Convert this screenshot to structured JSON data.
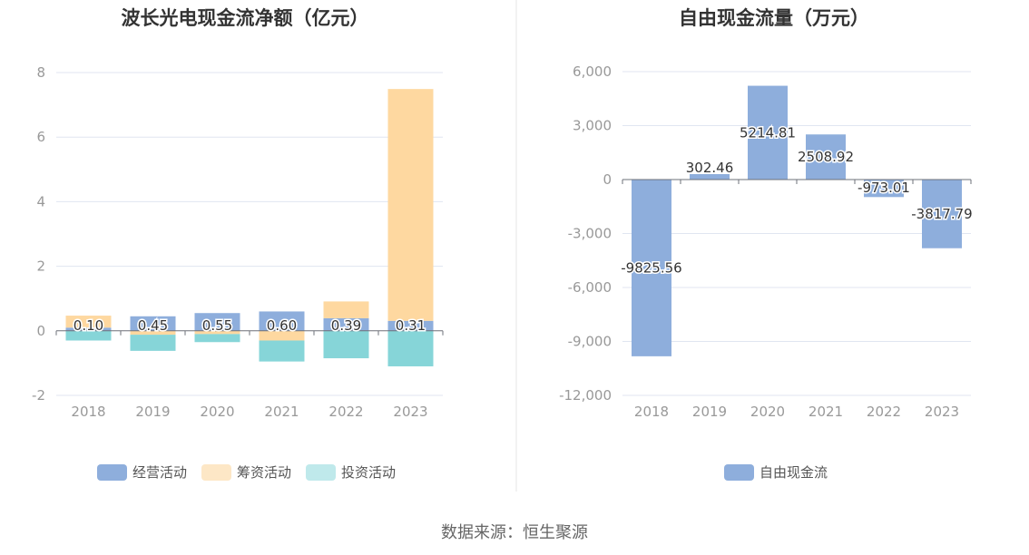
{
  "source": "数据来源：恒生聚源",
  "chart_data": [
    {
      "type": "bar",
      "stacked": true,
      "title": "波长光电现金流净额（亿元）",
      "categories": [
        "2018",
        "2019",
        "2020",
        "2021",
        "2022",
        "2023"
      ],
      "ylim": [
        -2,
        8
      ],
      "yticks": [
        "8",
        "6",
        "4",
        "2",
        "0",
        "-2"
      ],
      "ytick_values": [
        8,
        6,
        4,
        2,
        0,
        -2
      ],
      "series": [
        {
          "name": "经营活动",
          "color": "#8eaedc",
          "values": [
            0.1,
            0.45,
            0.55,
            0.6,
            0.39,
            0.31
          ],
          "labels": [
            "0.10",
            "0.45",
            "0.55",
            "0.60",
            "0.39",
            "0.31"
          ]
        },
        {
          "name": "筹资活动",
          "color": "#fed8a0",
          "legend_color": "#fde7c6",
          "values": [
            0.37,
            -0.12,
            -0.1,
            -0.3,
            0.52,
            7.18
          ]
        },
        {
          "name": "投资活动",
          "color": "#86d5d8",
          "legend_color": "#bfe9eb",
          "values": [
            -0.3,
            -0.5,
            -0.25,
            -0.65,
            -0.85,
            -1.1
          ]
        }
      ],
      "legend": "bottom"
    },
    {
      "type": "bar",
      "title": "自由现金流量（万元）",
      "categories": [
        "2018",
        "2019",
        "2020",
        "2021",
        "2022",
        "2023"
      ],
      "ylim": [
        -12000,
        6000
      ],
      "yticks": [
        "6,000",
        "3,000",
        "0",
        "-3,000",
        "-6,000",
        "-9,000",
        "-12,000"
      ],
      "ytick_values": [
        6000,
        3000,
        0,
        -3000,
        -6000,
        -9000,
        -12000
      ],
      "series": [
        {
          "name": "自由现金流",
          "color": "#8eaedc",
          "values": [
            -9825.56,
            302.46,
            5214.81,
            2508.92,
            -973.01,
            -3817.79
          ],
          "labels": [
            "-9825.56",
            "302.46",
            "5214.81",
            "2508.92",
            "-973.01",
            "-3817.79"
          ]
        }
      ],
      "legend": "bottom"
    }
  ]
}
